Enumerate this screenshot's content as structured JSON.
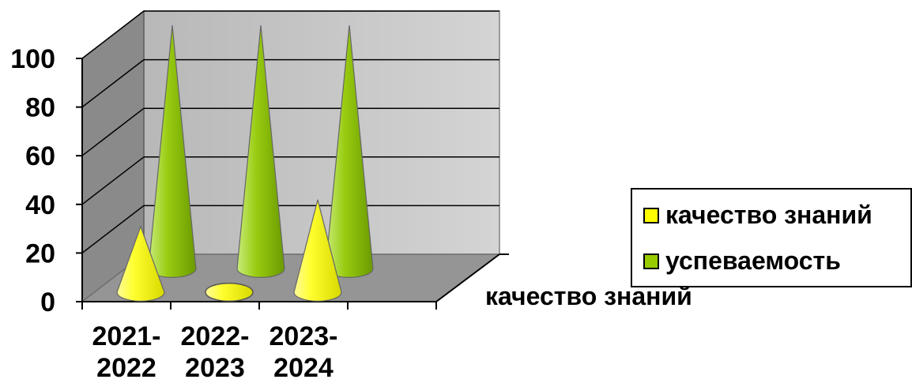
{
  "chart_data": {
    "type": "bar",
    "shape": "cone-3d",
    "categories": [
      [
        "2021-",
        "2022"
      ],
      [
        "2022-",
        "2023"
      ],
      [
        "2023-",
        "2024"
      ]
    ],
    "series": [
      {
        "name": "качество знаний",
        "values": [
          27,
          0,
          38
        ],
        "color": "#ffff00"
      },
      {
        "name": "успеваемость",
        "values": [
          100,
          100,
          100
        ],
        "color": "#99cc00"
      }
    ],
    "yticks": [
      0,
      20,
      40,
      60,
      80,
      100
    ],
    "ylim": [
      0,
      100
    ],
    "depth_axis_label": "качество  знаний",
    "grid": true,
    "legend_position": "right"
  }
}
